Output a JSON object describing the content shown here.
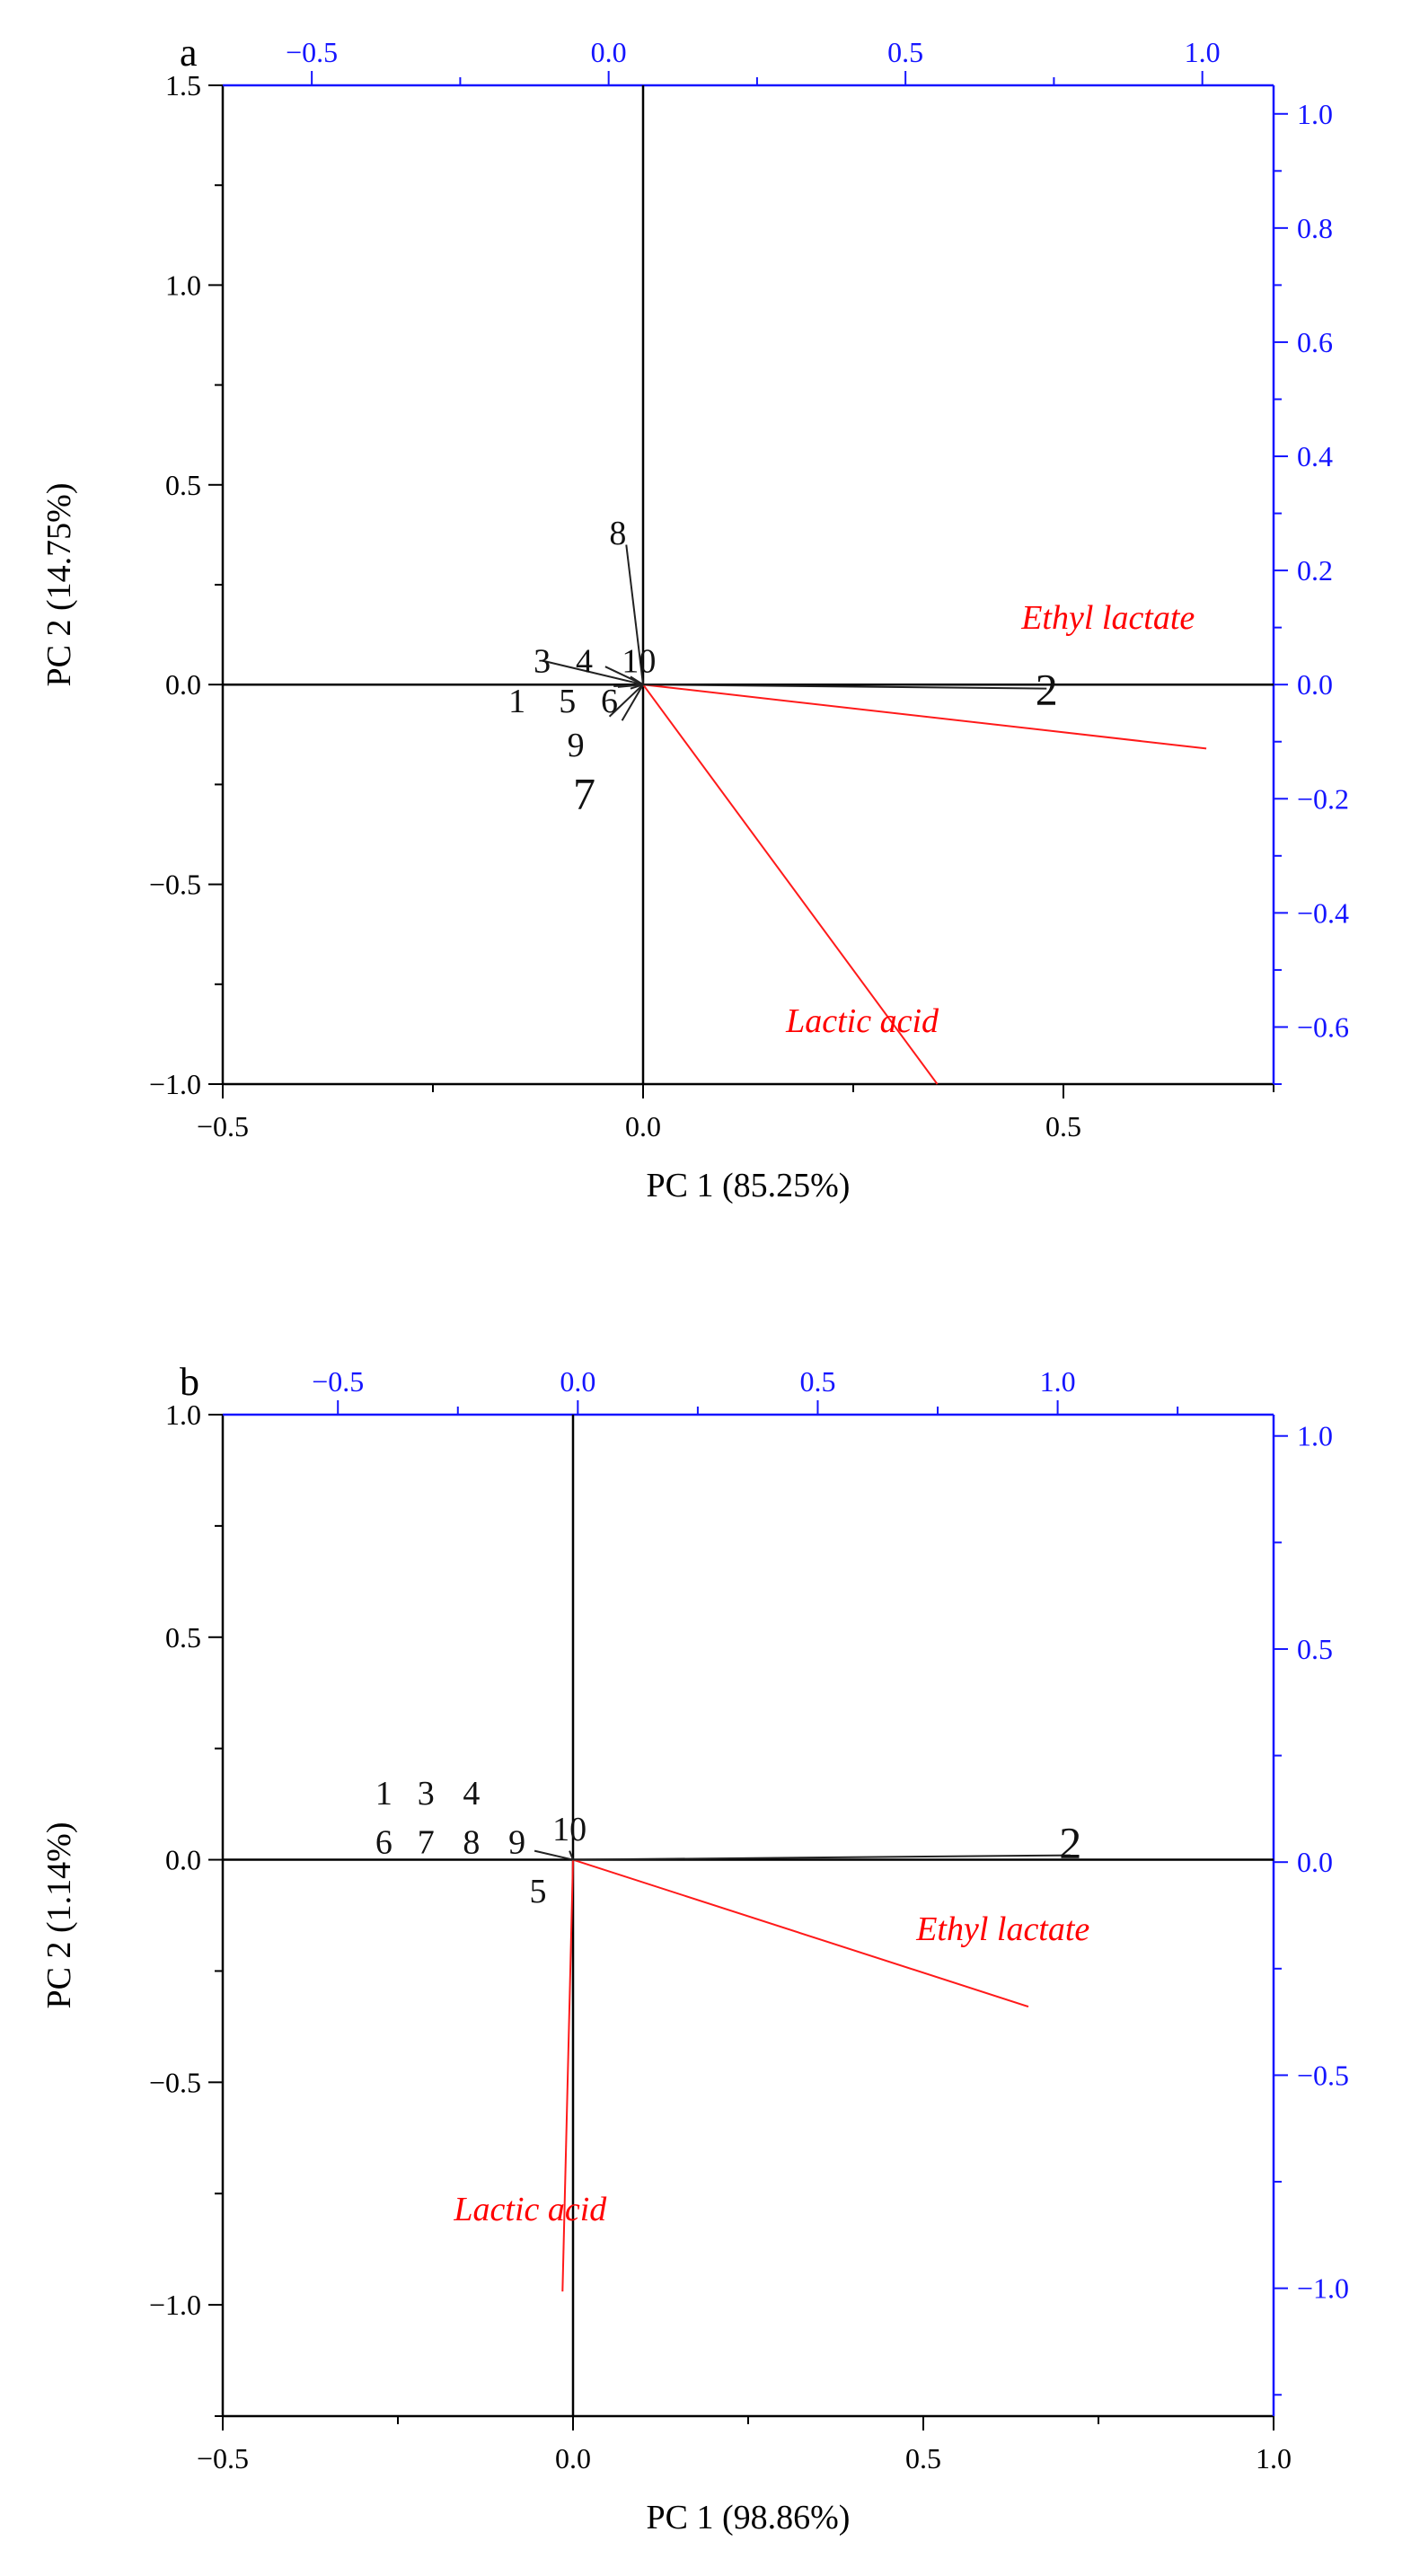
{
  "chart_data": [
    {
      "type": "biplot",
      "panel_label": "a",
      "xlabel": "PC 1 (85.25%)",
      "ylabel": "PC 2 (14.75%)",
      "xlim": [
        -0.5,
        0.75
      ],
      "ylim": [
        -1.0,
        1.5
      ],
      "x_ticks": [
        -0.5,
        0.0,
        0.5
      ],
      "x_tick_labels": [
        "−0.5",
        "0.0",
        "0.5"
      ],
      "y_ticks": [
        -1.0,
        -0.5,
        0.0,
        0.5,
        1.0,
        1.5
      ],
      "y_tick_labels": [
        "−1.0",
        "−0.5",
        "0.0",
        "0.5",
        "1.0",
        "1.5"
      ],
      "top_axis": {
        "lim": [
          -0.65,
          1.12
        ],
        "ticks": [
          -0.5,
          0.0,
          0.5,
          1.0
        ],
        "tick_labels": [
          "−0.5",
          "0.0",
          "0.5",
          "1.0"
        ],
        "color": "#1515ff"
      },
      "right_axis": {
        "lim": [
          -0.7,
          1.05
        ],
        "ticks": [
          -0.6,
          -0.4,
          -0.2,
          0.0,
          0.2,
          0.4,
          0.6,
          0.8,
          1.0
        ],
        "tick_labels": [
          "−0.6",
          "−0.4",
          "−0.2",
          "0.0",
          "0.2",
          "0.4",
          "0.6",
          "0.8",
          "1.0"
        ],
        "color": "#1515ff"
      },
      "samples": [
        {
          "label": "1",
          "x": -0.15,
          "y": -0.04,
          "lx": -0.035,
          "ly": -0.004
        },
        {
          "label": "2",
          "x": 0.48,
          "y": -0.01,
          "lx": 0.48,
          "ly": -0.01,
          "big": true
        },
        {
          "label": "3",
          "x": -0.12,
          "y": 0.06,
          "lx": -0.12,
          "ly": 0.06
        },
        {
          "label": "4",
          "x": -0.07,
          "y": 0.06,
          "lx": -0.045,
          "ly": 0.045
        },
        {
          "label": "5",
          "x": -0.09,
          "y": -0.04,
          "lx": -0.03,
          "ly": -0.006
        },
        {
          "label": "6",
          "x": -0.04,
          "y": -0.04,
          "lx": -0.015,
          "ly": -0.01
        },
        {
          "label": "7",
          "x": -0.07,
          "y": -0.27,
          "lx": -0.025,
          "ly": -0.09,
          "big": true
        },
        {
          "label": "8",
          "x": -0.03,
          "y": 0.38,
          "lx": -0.02,
          "ly": 0.35
        },
        {
          "label": "9",
          "x": -0.08,
          "y": -0.15,
          "lx": -0.04,
          "ly": -0.08
        },
        {
          "label": "10",
          "x": -0.005,
          "y": 0.06,
          "lx": -0.015,
          "ly": 0.02
        }
      ],
      "variables": [
        {
          "name": "Ethyl lactate",
          "x": 0.67,
          "y": -0.16,
          "label_x": 0.45,
          "label_y": 0.14
        },
        {
          "name": "Lactic acid",
          "x": 0.35,
          "y": -1.0,
          "label_x": 0.17,
          "label_y": -0.87
        }
      ]
    },
    {
      "type": "biplot",
      "panel_label": "b",
      "xlabel": "PC 1 (98.86%)",
      "ylabel": "PC 2 (1.14%)",
      "xlim": [
        -0.5,
        1.0
      ],
      "ylim": [
        -1.25,
        1.0
      ],
      "x_ticks": [
        -0.5,
        0.0,
        0.5,
        1.0
      ],
      "x_tick_labels": [
        "−0.5",
        "0.0",
        "0.5",
        "1.0"
      ],
      "y_ticks": [
        -1.0,
        -0.5,
        0.0,
        0.5,
        1.0
      ],
      "y_tick_labels": [
        "−1.0",
        "−0.5",
        "0.0",
        "0.5",
        "1.0"
      ],
      "top_axis": {
        "lim": [
          -0.74,
          1.45
        ],
        "ticks": [
          -0.5,
          0.0,
          0.5,
          1.0
        ],
        "tick_labels": [
          "−0.5",
          "0.0",
          "0.5",
          "1.0"
        ],
        "color": "#1515ff"
      },
      "right_axis": {
        "lim": [
          -1.3,
          1.05
        ],
        "ticks": [
          -1.0,
          -0.5,
          0.0,
          0.5,
          1.0
        ],
        "tick_labels": [
          "−1.0",
          "−0.5",
          "0.0",
          "0.5",
          "1.0"
        ],
        "color": "#1515ff"
      },
      "samples": [
        {
          "label": "1",
          "x": -0.27,
          "y": 0.15
        },
        {
          "label": "3",
          "x": -0.21,
          "y": 0.15
        },
        {
          "label": "4",
          "x": -0.145,
          "y": 0.15
        },
        {
          "label": "6",
          "x": -0.27,
          "y": 0.04
        },
        {
          "label": "7",
          "x": -0.21,
          "y": 0.04
        },
        {
          "label": "8",
          "x": -0.145,
          "y": 0.04
        },
        {
          "label": "9",
          "x": -0.08,
          "y": 0.04,
          "lx": -0.055,
          "ly": 0.02
        },
        {
          "label": "10",
          "x": -0.005,
          "y": 0.07,
          "lx": -0.005,
          "ly": 0.02
        },
        {
          "label": "5",
          "x": -0.05,
          "y": -0.07
        },
        {
          "label": "2",
          "x": 0.71,
          "y": 0.04,
          "lx": 0.71,
          "ly": 0.01,
          "big": true
        }
      ],
      "variables": [
        {
          "name": "Ethyl lactate",
          "x": 0.65,
          "y": -0.33,
          "label_x": 0.49,
          "label_y": -0.18
        },
        {
          "name": "Lactic acid",
          "x": -0.015,
          "y": -0.97,
          "label_x": -0.17,
          "label_y": -0.81
        }
      ]
    }
  ]
}
